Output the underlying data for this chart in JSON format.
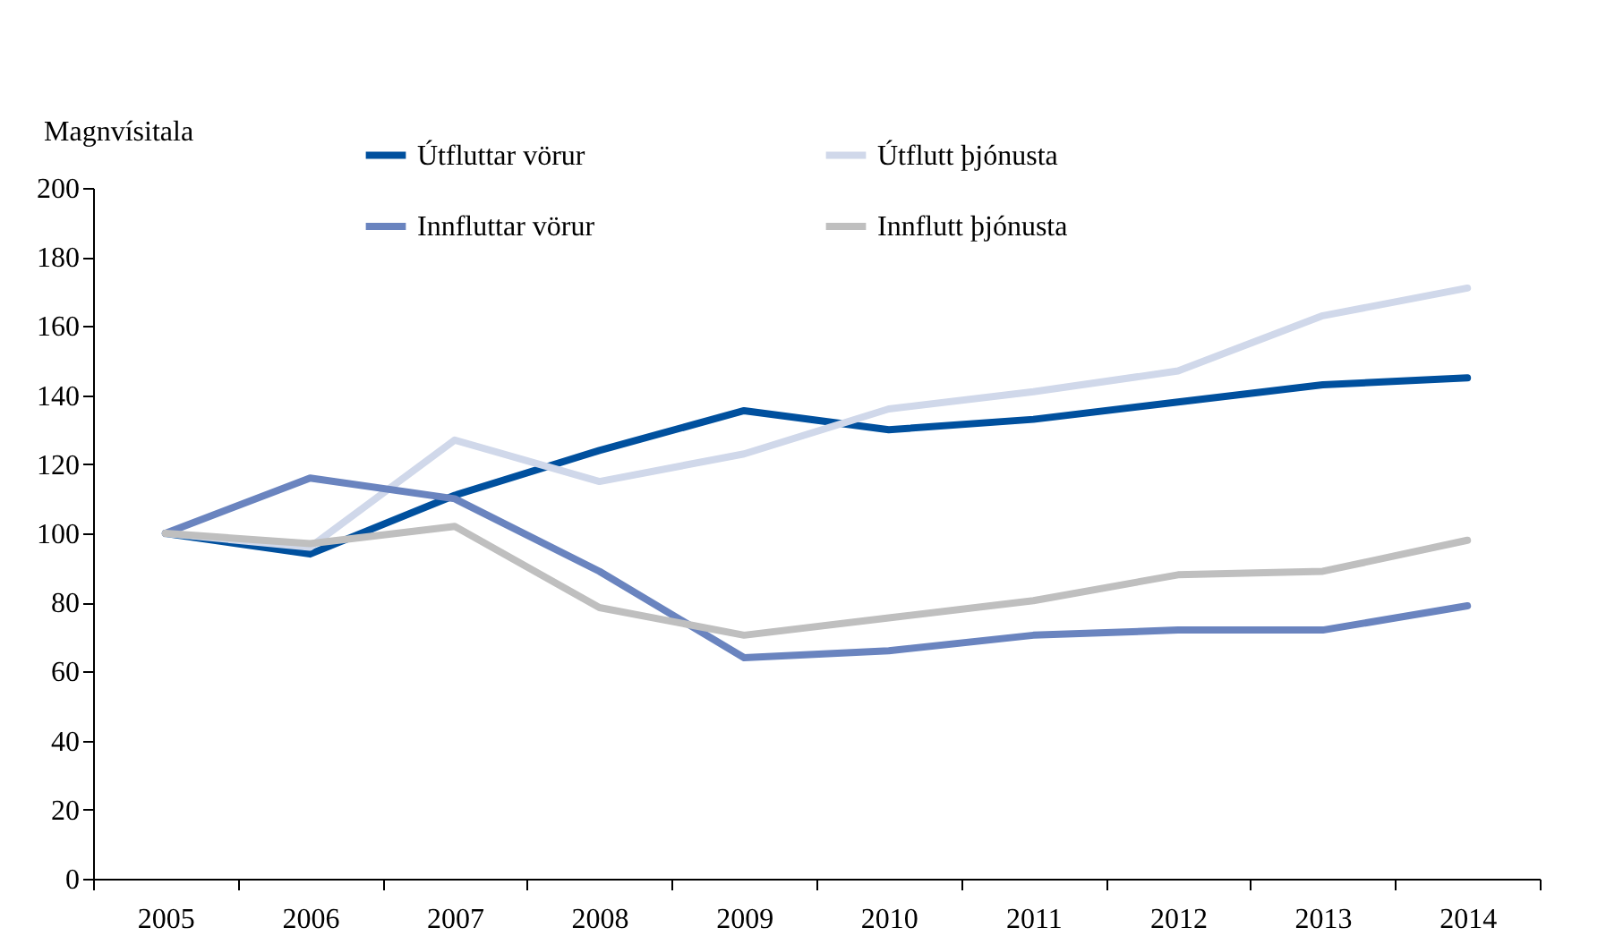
{
  "chart_data": {
    "type": "line",
    "ylabel": "Magnvísitala",
    "categories": [
      "2005",
      "2006",
      "2007",
      "2008",
      "2009",
      "2010",
      "2011",
      "2012",
      "2013",
      "2014"
    ],
    "series": [
      {
        "name": "Útfluttar vörur",
        "color": "#00509e",
        "values": [
          100,
          94,
          111,
          124,
          135.5,
          130,
          133,
          138,
          143,
          145
        ]
      },
      {
        "name": "Útflutt þjónusta",
        "color": "#d0d8ea",
        "values": [
          100,
          96,
          127,
          115,
          123,
          136,
          141,
          147,
          163,
          171
        ]
      },
      {
        "name": "Innfluttar vörur",
        "color": "#6a84bf",
        "values": [
          100,
          116,
          110,
          89,
          64,
          66,
          70.5,
          72,
          72,
          79
        ]
      },
      {
        "name": "Innflutt þjónusta",
        "color": "#bfbfbf",
        "values": [
          100,
          97,
          102,
          78.5,
          70.5,
          75.5,
          80.5,
          88,
          89,
          98
        ]
      }
    ],
    "ylim": [
      0,
      200
    ],
    "yticks": [
      0,
      20,
      40,
      60,
      80,
      100,
      120,
      140,
      160,
      180,
      200
    ],
    "grid": false,
    "legend": "top",
    "marker": "none",
    "line_style": "solid"
  }
}
